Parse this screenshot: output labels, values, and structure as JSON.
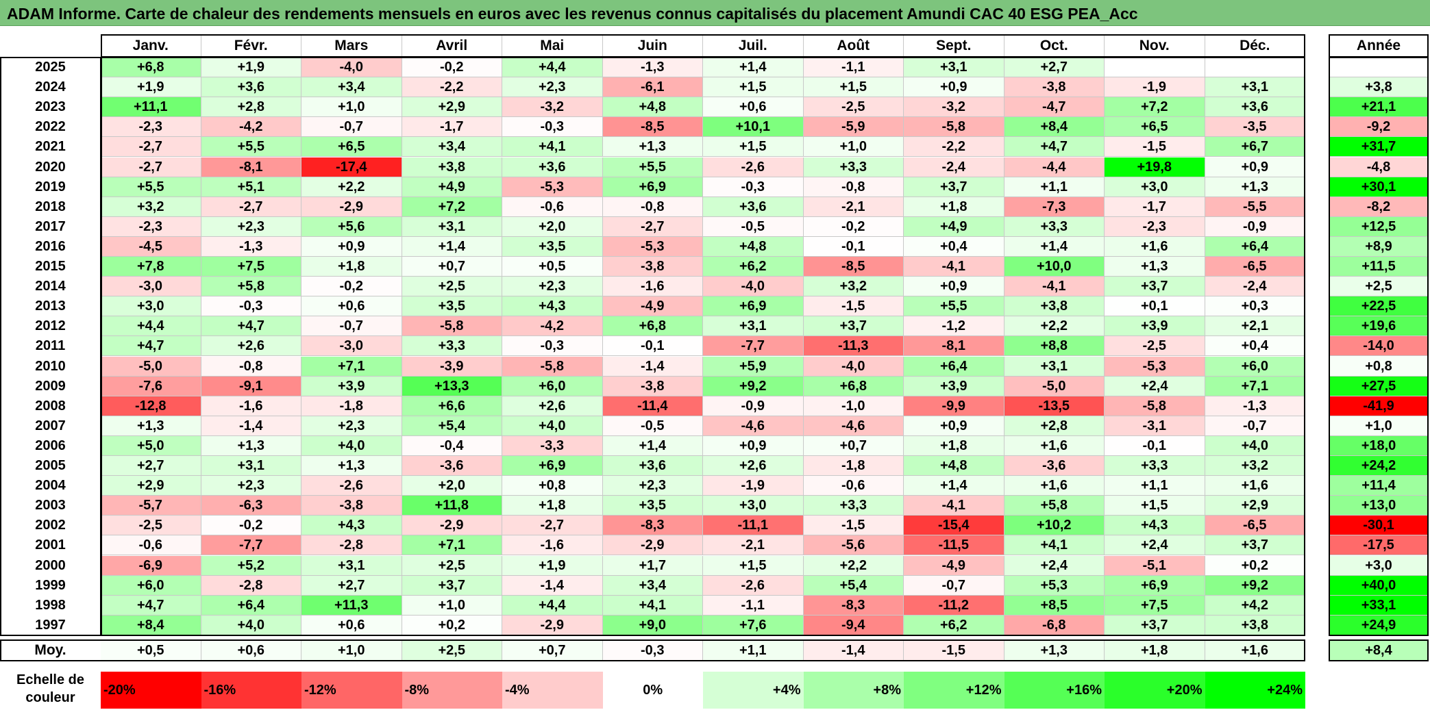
{
  "chart_data": {
    "type": "heatmap",
    "title": "ADAM Informe. Carte de chaleur des rendements mensuels en euros avec les revenus connus capitalisés du placement Amundi CAC 40 ESG PEA_Acc",
    "columns": [
      "Janv.",
      "Févr.",
      "Mars",
      "Avril",
      "Mai",
      "Juin",
      "Juil.",
      "Août",
      "Sept.",
      "Oct.",
      "Nov.",
      "Déc."
    ],
    "year_header": "Année",
    "rows": [
      {
        "year": "2025",
        "values": [
          6.8,
          1.9,
          -4.0,
          -0.2,
          4.4,
          -1.3,
          1.4,
          -1.1,
          3.1,
          2.7,
          null,
          null
        ],
        "annual": null
      },
      {
        "year": "2024",
        "values": [
          1.9,
          3.6,
          3.4,
          -2.2,
          2.3,
          -6.1,
          1.5,
          1.5,
          0.9,
          -3.8,
          -1.9,
          3.1
        ],
        "annual": 3.8
      },
      {
        "year": "2023",
        "values": [
          11.1,
          2.8,
          1.0,
          2.9,
          -3.2,
          4.8,
          0.6,
          -2.5,
          -3.2,
          -4.7,
          7.2,
          3.6
        ],
        "annual": 21.1
      },
      {
        "year": "2022",
        "values": [
          -2.3,
          -4.2,
          -0.7,
          -1.7,
          -0.3,
          -8.5,
          10.1,
          -5.9,
          -5.8,
          8.4,
          6.5,
          -3.5
        ],
        "annual": -9.2
      },
      {
        "year": "2021",
        "values": [
          -2.7,
          5.5,
          6.5,
          3.4,
          4.1,
          1.3,
          1.5,
          1.0,
          -2.2,
          4.7,
          -1.5,
          6.7
        ],
        "annual": 31.7
      },
      {
        "year": "2020",
        "values": [
          -2.7,
          -8.1,
          -17.4,
          3.8,
          3.6,
          5.5,
          -2.6,
          3.3,
          -2.4,
          -4.4,
          19.8,
          0.9
        ],
        "annual": -4.8
      },
      {
        "year": "2019",
        "values": [
          5.5,
          5.1,
          2.2,
          4.9,
          -5.3,
          6.9,
          -0.3,
          -0.8,
          3.7,
          1.1,
          3.0,
          1.3
        ],
        "annual": 30.1
      },
      {
        "year": "2018",
        "values": [
          3.2,
          -2.7,
          -2.9,
          7.2,
          -0.6,
          -0.8,
          3.6,
          -2.1,
          1.8,
          -7.3,
          -1.7,
          -5.5
        ],
        "annual": -8.2
      },
      {
        "year": "2017",
        "values": [
          -2.3,
          2.3,
          5.6,
          3.1,
          2.0,
          -2.7,
          -0.5,
          -0.2,
          4.9,
          3.3,
          -2.3,
          -0.9
        ],
        "annual": 12.5
      },
      {
        "year": "2016",
        "values": [
          -4.5,
          -1.3,
          0.9,
          1.4,
          3.5,
          -5.3,
          4.8,
          -0.1,
          0.4,
          1.4,
          1.6,
          6.4
        ],
        "annual": 8.9
      },
      {
        "year": "2015",
        "values": [
          7.8,
          7.5,
          1.8,
          0.7,
          0.5,
          -3.8,
          6.2,
          -8.5,
          -4.1,
          10.0,
          1.3,
          -6.5
        ],
        "annual": 11.5
      },
      {
        "year": "2014",
        "values": [
          -3.0,
          5.8,
          -0.2,
          2.5,
          2.3,
          -1.6,
          -4.0,
          3.2,
          0.9,
          -4.1,
          3.7,
          -2.4
        ],
        "annual": 2.5
      },
      {
        "year": "2013",
        "values": [
          3.0,
          -0.3,
          0.6,
          3.5,
          4.3,
          -4.9,
          6.9,
          -1.5,
          5.5,
          3.8,
          0.1,
          0.3
        ],
        "annual": 22.5
      },
      {
        "year": "2012",
        "values": [
          4.4,
          4.7,
          -0.7,
          -5.8,
          -4.2,
          6.8,
          3.1,
          3.7,
          -1.2,
          2.2,
          3.9,
          2.1
        ],
        "annual": 19.6
      },
      {
        "year": "2011",
        "values": [
          4.7,
          2.6,
          -3.0,
          3.3,
          -0.3,
          -0.1,
          -7.7,
          -11.3,
          -8.1,
          8.8,
          -2.5,
          0.4
        ],
        "annual": -14.0
      },
      {
        "year": "2010",
        "values": [
          -5.0,
          -0.8,
          7.1,
          -3.9,
          -5.8,
          -1.4,
          5.9,
          -4.0,
          6.4,
          3.1,
          -5.3,
          6.0
        ],
        "annual": 0.8
      },
      {
        "year": "2009",
        "values": [
          -7.6,
          -9.1,
          3.9,
          13.3,
          6.0,
          -3.8,
          9.2,
          6.8,
          3.9,
          -5.0,
          2.4,
          7.1
        ],
        "annual": 27.5
      },
      {
        "year": "2008",
        "values": [
          -12.8,
          -1.6,
          -1.8,
          6.6,
          2.6,
          -11.4,
          -0.9,
          -1.0,
          -9.9,
          -13.5,
          -5.8,
          -1.3
        ],
        "annual": -41.9
      },
      {
        "year": "2007",
        "values": [
          1.3,
          -1.4,
          2.3,
          5.4,
          4.0,
          -0.5,
          -4.6,
          -4.6,
          0.9,
          2.8,
          -3.1,
          -0.7
        ],
        "annual": 1.0
      },
      {
        "year": "2006",
        "values": [
          5.0,
          1.3,
          4.0,
          -0.4,
          -3.3,
          1.4,
          0.9,
          0.7,
          1.8,
          1.6,
          -0.1,
          4.0
        ],
        "annual": 18.0
      },
      {
        "year": "2005",
        "values": [
          2.7,
          3.1,
          1.3,
          -3.6,
          6.9,
          3.6,
          2.6,
          -1.8,
          4.8,
          -3.6,
          3.3,
          3.2
        ],
        "annual": 24.2
      },
      {
        "year": "2004",
        "values": [
          2.9,
          2.3,
          -2.6,
          2.0,
          0.8,
          2.3,
          -1.9,
          -0.6,
          1.4,
          1.6,
          1.1,
          1.6
        ],
        "annual": 11.4
      },
      {
        "year": "2003",
        "values": [
          -5.7,
          -6.3,
          -3.8,
          11.8,
          1.8,
          3.5,
          3.0,
          3.3,
          -4.1,
          5.8,
          1.5,
          2.9
        ],
        "annual": 13.0
      },
      {
        "year": "2002",
        "values": [
          -2.5,
          -0.2,
          4.3,
          -2.9,
          -2.7,
          -8.3,
          -11.1,
          -1.5,
          -15.4,
          10.2,
          4.3,
          -6.5
        ],
        "annual": -30.1
      },
      {
        "year": "2001",
        "values": [
          -0.6,
          -7.7,
          -2.8,
          7.1,
          -1.6,
          -2.9,
          -2.1,
          -5.6,
          -11.5,
          4.1,
          2.4,
          3.7
        ],
        "annual": -17.5
      },
      {
        "year": "2000",
        "values": [
          -6.9,
          5.2,
          3.1,
          2.5,
          1.9,
          1.7,
          1.5,
          2.2,
          -4.9,
          2.4,
          -5.1,
          0.2
        ],
        "annual": 3.0
      },
      {
        "year": "1999",
        "values": [
          6.0,
          -2.8,
          2.7,
          3.7,
          -1.4,
          3.4,
          -2.6,
          5.4,
          -0.7,
          5.3,
          6.9,
          9.2
        ],
        "annual": 40.0
      },
      {
        "year": "1998",
        "values": [
          4.7,
          6.4,
          11.3,
          1.0,
          4.4,
          4.1,
          -1.1,
          -8.3,
          -11.2,
          8.5,
          7.5,
          4.2
        ],
        "annual": 33.1
      },
      {
        "year": "1997",
        "values": [
          8.4,
          4.0,
          0.6,
          0.2,
          -2.9,
          9.0,
          7.6,
          -9.4,
          6.2,
          -6.8,
          3.7,
          3.8
        ],
        "annual": 24.9
      }
    ],
    "average": {
      "label": "Moy.",
      "values": [
        0.5,
        0.6,
        1.0,
        2.5,
        0.7,
        -0.3,
        1.1,
        -1.4,
        -1.5,
        1.3,
        1.8,
        1.6
      ],
      "annual": 8.4
    },
    "color_scale": {
      "label_line1": "Echelle de",
      "label_line2": "couleur",
      "stops": [
        "-20%",
        "-16%",
        "-12%",
        "-8%",
        "-4%",
        "0%",
        "+4%",
        "+8%",
        "+12%",
        "+16%",
        "+20%",
        "+24%"
      ],
      "stop_values": [
        -20,
        -16,
        -12,
        -8,
        -4,
        0,
        4,
        8,
        12,
        16,
        20,
        24
      ],
      "negative_color": "#ff0000",
      "zero_color": "#ffffff",
      "positive_color": "#00ff00"
    }
  }
}
